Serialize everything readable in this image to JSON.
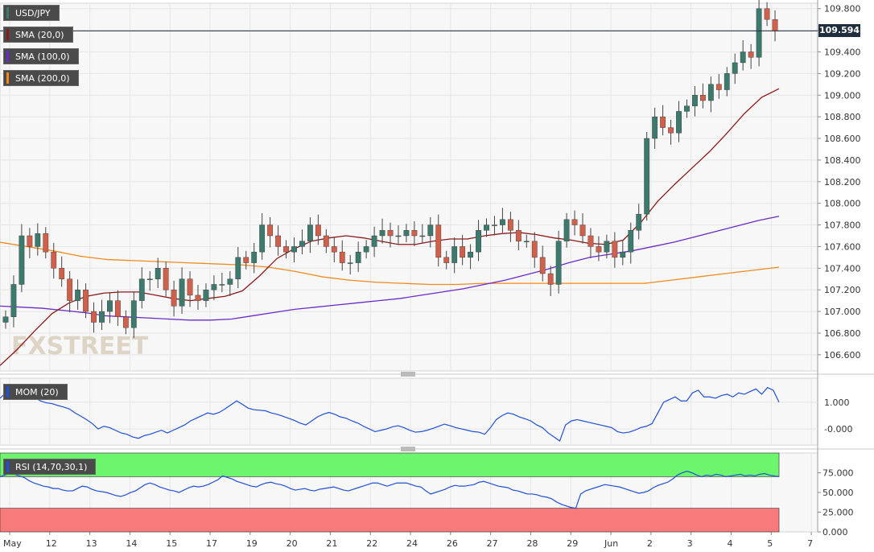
{
  "legend": {
    "symbol": "USD/JPY",
    "sma20": "SMA (20,0)",
    "sma100": "SMA (100,0)",
    "sma200": "SMA (200,0)",
    "mom": "MOM (20)",
    "rsi": "RSI (14,70,30,1)"
  },
  "last_price": "109.594",
  "watermark": "FXSTREET",
  "colors": {
    "sma20": "#8b1a1a",
    "sma100": "#6a2ac9",
    "sma200": "#f08a1c",
    "up_candle": "#3c7a6e",
    "down_candle": "#d0604a",
    "indicator": "#1f4fd6",
    "rsi_overbought": "#6ef56e",
    "rsi_oversold": "#f97a7a"
  },
  "chart_data": [
    {
      "type": "candlestick",
      "title": "USD/JPY",
      "price_axis": [
        "109.800",
        "109.600",
        "109.400",
        "109.200",
        "109.000",
        "108.800",
        "108.600",
        "108.400",
        "108.200",
        "108.000",
        "107.800",
        "107.600",
        "107.400",
        "107.200",
        "107.000",
        "106.800",
        "106.600"
      ],
      "ylim": [
        106.45,
        109.85
      ],
      "date_axis": [
        "May",
        "12",
        "13",
        "14",
        "15",
        "17",
        "19",
        "20",
        "21",
        "22",
        "24",
        "26",
        "27",
        "28",
        "29",
        "Jun",
        "2",
        "3",
        "4",
        "5",
        "7"
      ],
      "closes": [
        106.95,
        107.25,
        107.7,
        107.6,
        107.72,
        107.55,
        107.4,
        107.3,
        107.1,
        107.2,
        107.0,
        106.9,
        107.0,
        107.1,
        106.95,
        106.85,
        107.1,
        107.3,
        107.3,
        107.4,
        107.2,
        107.05,
        107.3,
        107.15,
        107.1,
        107.2,
        107.25,
        107.25,
        107.3,
        107.5,
        107.45,
        107.55,
        107.8,
        107.7,
        107.6,
        107.55,
        107.6,
        107.65,
        107.8,
        107.7,
        107.6,
        107.55,
        107.45,
        107.45,
        107.55,
        107.6,
        107.7,
        107.75,
        107.7,
        107.7,
        107.75,
        107.7,
        107.7,
        107.8,
        107.5,
        107.45,
        107.6,
        107.5,
        107.55,
        107.75,
        107.8,
        107.8,
        107.85,
        107.75,
        107.65,
        107.65,
        107.5,
        107.35,
        107.25,
        107.65,
        107.85,
        107.8,
        107.7,
        107.6,
        107.55,
        107.65,
        107.5,
        107.55,
        107.75,
        107.9,
        108.6,
        108.8,
        108.7,
        108.65,
        108.85,
        108.9,
        109.0,
        108.95,
        109.1,
        109.05,
        109.2,
        109.3,
        109.4,
        109.35,
        109.8,
        109.7,
        109.594
      ],
      "series": [
        {
          "name": "SMA (20,0)",
          "values": [
            106.5,
            106.65,
            106.82,
            106.98,
            107.08,
            107.14,
            107.17,
            107.18,
            107.18,
            107.15,
            107.12,
            107.1,
            107.12,
            107.14,
            107.19,
            107.33,
            107.49,
            107.58,
            107.65,
            107.68,
            107.7,
            107.68,
            107.65,
            107.62,
            107.62,
            107.65,
            107.67,
            107.67,
            107.7,
            107.72,
            107.73,
            107.71,
            107.68,
            107.66,
            107.63,
            107.62,
            107.66,
            107.82,
            108.02,
            108.18,
            108.33,
            108.48,
            108.65,
            108.83,
            108.98,
            109.06
          ]
        },
        {
          "name": "SMA (100,0)",
          "values": [
            107.05,
            107.04,
            107.03,
            107.01,
            106.99,
            106.96,
            106.95,
            106.94,
            106.93,
            106.92,
            106.92,
            106.93,
            106.96,
            106.99,
            107.02,
            107.04,
            107.06,
            107.08,
            107.1,
            107.12,
            107.15,
            107.18,
            107.21,
            107.25,
            107.29,
            107.34,
            107.39,
            107.45,
            107.5,
            107.53,
            107.56,
            107.6,
            107.64,
            107.69,
            107.74,
            107.79,
            107.84,
            107.88
          ]
        },
        {
          "name": "SMA (200,0)",
          "values": [
            107.64,
            107.6,
            107.56,
            107.51,
            107.48,
            107.47,
            107.46,
            107.45,
            107.44,
            107.43,
            107.41,
            107.37,
            107.32,
            107.29,
            107.27,
            107.26,
            107.25,
            107.25,
            107.26,
            107.26,
            107.26,
            107.26,
            107.26,
            107.26,
            107.26,
            107.29,
            107.32,
            107.35,
            107.38,
            107.41
          ]
        }
      ]
    },
    {
      "type": "line",
      "title": "MOM (20)",
      "yticks": [
        "1.000",
        "-0.000"
      ],
      "ylim": [
        -0.6,
        1.9
      ],
      "series": [
        {
          "name": "MOM (20)",
          "values": [
            1.15,
            1.35,
            1.45,
            1.38,
            1.32,
            1.2,
            1.18,
            1.05,
            0.98,
            0.95,
            0.88,
            0.82,
            0.75,
            0.6,
            0.48,
            0.35,
            0.2,
            0.0,
            0.1,
            0.05,
            -0.05,
            -0.15,
            -0.2,
            -0.3,
            -0.35,
            -0.25,
            -0.2,
            -0.12,
            -0.05,
            -0.15,
            -0.05,
            0.05,
            0.15,
            0.3,
            0.4,
            0.5,
            0.6,
            0.55,
            0.62,
            0.75,
            0.9,
            1.05,
            0.92,
            0.78,
            0.72,
            0.7,
            0.68,
            0.6,
            0.55,
            0.48,
            0.4,
            0.32,
            0.22,
            0.15,
            0.3,
            0.45,
            0.55,
            0.62,
            0.55,
            0.45,
            0.4,
            0.3,
            0.22,
            0.1,
            0.0,
            -0.1,
            -0.05,
            0.0,
            0.08,
            0.12,
            0.05,
            -0.05,
            -0.12,
            -0.1,
            -0.05,
            0.02,
            0.1,
            0.18,
            0.12,
            0.05,
            0.0,
            -0.05,
            -0.1,
            -0.12,
            -0.2,
            0.05,
            0.35,
            0.5,
            0.6,
            0.55,
            0.45,
            0.38,
            0.3,
            0.15,
            0.05,
            -0.15,
            -0.3,
            -0.45,
            0.15,
            0.3,
            0.35,
            0.3,
            0.25,
            0.2,
            0.15,
            0.1,
            0.05,
            -0.1,
            -0.15,
            -0.12,
            -0.05,
            0.05,
            0.1,
            0.2,
            0.6,
            1.0,
            1.1,
            1.2,
            1.05,
            1.05,
            1.35,
            1.45,
            1.2,
            1.2,
            1.15,
            1.25,
            1.3,
            1.2,
            1.35,
            1.3,
            1.4,
            1.5,
            1.3,
            1.55,
            1.45,
            1.0
          ]
        }
      ]
    },
    {
      "type": "line",
      "title": "RSI (14,70,30,1)",
      "yticks": [
        "75.000",
        "50.000",
        "25.000",
        "0.000"
      ],
      "ylim": [
        0,
        100
      ],
      "overbought": 70,
      "oversold": 30,
      "series": [
        {
          "name": "RSI (14,70,30,1)",
          "values": [
            70,
            72,
            74,
            73,
            71,
            69,
            65,
            62,
            60,
            58,
            57,
            55,
            55,
            53,
            52,
            52,
            55,
            58,
            57,
            54,
            52,
            51,
            50,
            48,
            46,
            45,
            47,
            50,
            52,
            56,
            60,
            62,
            60,
            57,
            55,
            53,
            52,
            50,
            53,
            56,
            58,
            57,
            58,
            60,
            63,
            66,
            71,
            69,
            67,
            64,
            62,
            60,
            58,
            57,
            60,
            62,
            63,
            61,
            60,
            58,
            55,
            53,
            54,
            55,
            53,
            52,
            54,
            55,
            56,
            57,
            55,
            53,
            52,
            54,
            56,
            58,
            60,
            62,
            62,
            60,
            58,
            60,
            62,
            62,
            62,
            60,
            58,
            57,
            52,
            48,
            50,
            52,
            54,
            57,
            59,
            58,
            58,
            59,
            60,
            63,
            64,
            62,
            60,
            58,
            57,
            56,
            53,
            52,
            50,
            48,
            48,
            47,
            45,
            44,
            42,
            38,
            35,
            33,
            31,
            30,
            48,
            52,
            54,
            56,
            58,
            60,
            59,
            58,
            57,
            55,
            53,
            51,
            49,
            50,
            52,
            56,
            59,
            61,
            63,
            67,
            72,
            75,
            77,
            75,
            72,
            70,
            72,
            71,
            73,
            72,
            70,
            71,
            72,
            73,
            71,
            72,
            71,
            73,
            74,
            72,
            71,
            70
          ]
        }
      ]
    }
  ]
}
